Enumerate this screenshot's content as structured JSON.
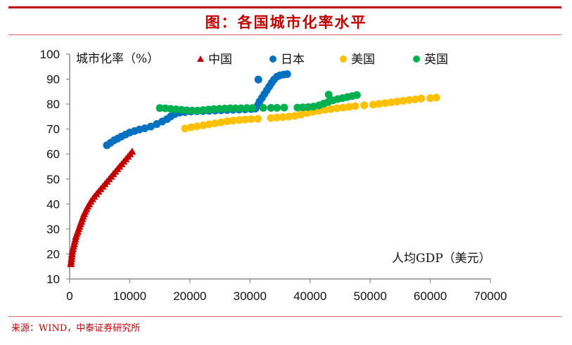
{
  "header": {
    "title": "图：各国城市化率水平"
  },
  "footer": {
    "source": "来源：WIND，中泰证券研究所"
  },
  "colors": {
    "accent": "#c00000",
    "china": "#c00000",
    "japan": "#0070c0",
    "usa": "#ffc000",
    "uk": "#00b050"
  },
  "chart_data": {
    "type": "scatter",
    "title": "图：各国城市化率水平",
    "xlabel": "人均GDP（美元）",
    "ylabel": "城市化率（%）",
    "xlim": [
      0,
      70000
    ],
    "ylim": [
      10,
      100
    ],
    "xticks": [
      "0",
      "10000",
      "20000",
      "30000",
      "40000",
      "50000",
      "60000",
      "70000"
    ],
    "yticks": [
      "10",
      "20",
      "30",
      "40",
      "50",
      "60",
      "70",
      "80",
      "90",
      "100"
    ],
    "grid": false,
    "legend_position": "top",
    "series": [
      {
        "name": "中国",
        "marker": "triangle",
        "color": "#c00000",
        "points": [
          [
            200,
            16
          ],
          [
            250,
            17
          ],
          [
            300,
            18
          ],
          [
            350,
            19
          ],
          [
            400,
            20
          ],
          [
            450,
            21
          ],
          [
            550,
            22
          ],
          [
            650,
            23
          ],
          [
            750,
            24
          ],
          [
            850,
            25
          ],
          [
            950,
            26
          ],
          [
            1050,
            27
          ],
          [
            1200,
            28
          ],
          [
            1350,
            29
          ],
          [
            1500,
            30
          ],
          [
            1650,
            31
          ],
          [
            1800,
            32
          ],
          [
            1950,
            33
          ],
          [
            2100,
            34
          ],
          [
            2250,
            35
          ],
          [
            2400,
            36
          ],
          [
            2600,
            37
          ],
          [
            2800,
            38
          ],
          [
            3000,
            39
          ],
          [
            3250,
            40
          ],
          [
            3500,
            41
          ],
          [
            3800,
            42
          ],
          [
            4100,
            43
          ],
          [
            4450,
            44
          ],
          [
            4800,
            45
          ],
          [
            5150,
            46
          ],
          [
            5500,
            47
          ],
          [
            5850,
            48
          ],
          [
            6200,
            49
          ],
          [
            6550,
            50
          ],
          [
            6900,
            51
          ],
          [
            7250,
            52
          ],
          [
            7600,
            53
          ],
          [
            7950,
            54
          ],
          [
            8300,
            55
          ],
          [
            8650,
            56
          ],
          [
            9000,
            57
          ],
          [
            9350,
            58
          ],
          [
            9700,
            59
          ],
          [
            10050,
            60
          ],
          [
            10400,
            61
          ]
        ]
      },
      {
        "name": "日本",
        "marker": "circle",
        "color": "#0070c0",
        "points": [
          [
            6200,
            63.5
          ],
          [
            6800,
            64.5
          ],
          [
            7400,
            65.5
          ],
          [
            8000,
            66.2
          ],
          [
            8600,
            67
          ],
          [
            9300,
            67.8
          ],
          [
            10000,
            68.6
          ],
          [
            10800,
            69.2
          ],
          [
            11600,
            69.8
          ],
          [
            12500,
            70.3
          ],
          [
            13500,
            71
          ],
          [
            14500,
            72
          ],
          [
            15400,
            73
          ],
          [
            16200,
            74
          ],
          [
            16800,
            75
          ],
          [
            17500,
            76
          ],
          [
            18300,
            76.6
          ],
          [
            19200,
            76.8
          ],
          [
            20200,
            77
          ],
          [
            21200,
            77.1
          ],
          [
            22200,
            77.2
          ],
          [
            23200,
            77.3
          ],
          [
            24200,
            77.4
          ],
          [
            25200,
            77.5
          ],
          [
            26200,
            77.6
          ],
          [
            27200,
            77.7
          ],
          [
            28200,
            77.8
          ],
          [
            29200,
            77.9
          ],
          [
            30200,
            78
          ],
          [
            30900,
            78.2
          ],
          [
            31300,
            79.5
          ],
          [
            31600,
            81
          ],
          [
            32000,
            82.5
          ],
          [
            32400,
            84
          ],
          [
            32800,
            85.5
          ],
          [
            33200,
            87
          ],
          [
            33600,
            88.5
          ],
          [
            34000,
            89.8
          ],
          [
            31400,
            89.8
          ],
          [
            34500,
            91
          ],
          [
            35000,
            91.5
          ],
          [
            35600,
            91.8
          ],
          [
            36200,
            92
          ]
        ]
      },
      {
        "name": "美国",
        "marker": "circle",
        "color": "#ffc000",
        "points": [
          [
            19200,
            70.2
          ],
          [
            20200,
            70.7
          ],
          [
            21200,
            71.1
          ],
          [
            22200,
            71.5
          ],
          [
            23200,
            71.9
          ],
          [
            24200,
            72.3
          ],
          [
            25200,
            72.7
          ],
          [
            26200,
            73.1
          ],
          [
            27200,
            73.4
          ],
          [
            28200,
            73.6
          ],
          [
            29200,
            73.8
          ],
          [
            30200,
            74
          ],
          [
            31300,
            74.1
          ],
          [
            33500,
            74.4
          ],
          [
            34500,
            74.6
          ],
          [
            35500,
            74.8
          ],
          [
            36500,
            75
          ],
          [
            37500,
            75.3
          ],
          [
            38500,
            75.8
          ],
          [
            39500,
            76.4
          ],
          [
            40500,
            76.9
          ],
          [
            41500,
            77.3
          ],
          [
            42500,
            77.7
          ],
          [
            43500,
            78
          ],
          [
            44500,
            78.3
          ],
          [
            45500,
            78.6
          ],
          [
            46500,
            78.9
          ],
          [
            47500,
            79.2
          ],
          [
            49000,
            79.5
          ],
          [
            50500,
            79.8
          ],
          [
            51500,
            80.1
          ],
          [
            52500,
            80.4
          ],
          [
            53500,
            80.7
          ],
          [
            54500,
            81
          ],
          [
            55500,
            81.3
          ],
          [
            56500,
            81.6
          ],
          [
            57500,
            81.9
          ],
          [
            58500,
            82.2
          ],
          [
            60000,
            82.4
          ],
          [
            61000,
            82.6
          ]
        ]
      },
      {
        "name": "英国",
        "marker": "circle",
        "color": "#00b050",
        "points": [
          [
            15000,
            78.4
          ],
          [
            15900,
            78.3
          ],
          [
            16800,
            78.1
          ],
          [
            17700,
            77.9
          ],
          [
            18600,
            77.7
          ],
          [
            19500,
            77.5
          ],
          [
            20400,
            77.4
          ],
          [
            21300,
            77.4
          ],
          [
            22200,
            77.6
          ],
          [
            23100,
            77.8
          ],
          [
            24000,
            78
          ],
          [
            24900,
            78.1
          ],
          [
            25800,
            78.2
          ],
          [
            26700,
            78.3
          ],
          [
            27600,
            78.3
          ],
          [
            28500,
            78.3
          ],
          [
            29500,
            78.4
          ],
          [
            30400,
            78.4
          ],
          [
            32200,
            78.5
          ],
          [
            33500,
            78.5
          ],
          [
            34500,
            78.5
          ],
          [
            35700,
            78.6
          ],
          [
            37900,
            78.6
          ],
          [
            38800,
            78.7
          ],
          [
            39700,
            78.8
          ],
          [
            40600,
            79
          ],
          [
            41500,
            79.5
          ],
          [
            42300,
            80.2
          ],
          [
            43000,
            80.8
          ],
          [
            43100,
            83.8
          ],
          [
            43800,
            81.5
          ],
          [
            44600,
            82
          ],
          [
            45400,
            82.4
          ],
          [
            46200,
            82.8
          ],
          [
            47000,
            83.2
          ],
          [
            47800,
            83.6
          ]
        ]
      }
    ]
  }
}
